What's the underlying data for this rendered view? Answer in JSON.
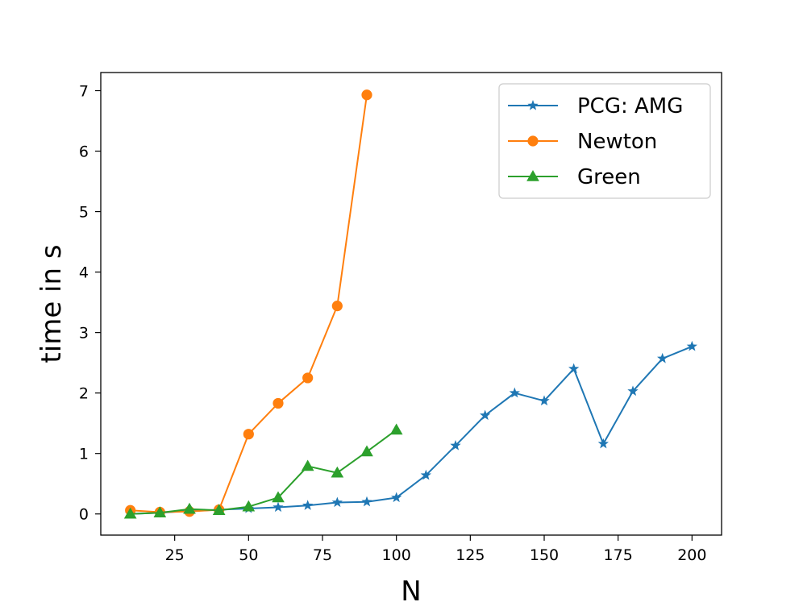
{
  "chart_data": {
    "type": "line",
    "title": "",
    "xlabel": "N",
    "ylabel": "time in s",
    "xlim": [
      0,
      210
    ],
    "ylim": [
      -0.35,
      7.3
    ],
    "xticks": [
      25,
      50,
      75,
      100,
      125,
      150,
      175,
      200
    ],
    "yticks": [
      0,
      1,
      2,
      3,
      4,
      5,
      6,
      7
    ],
    "xtick_labels": [
      "25",
      "50",
      "75",
      "100",
      "125",
      "150",
      "175",
      "200"
    ],
    "ytick_labels": [
      "0",
      "1",
      "2",
      "3",
      "4",
      "5",
      "6",
      "7"
    ],
    "grid": false,
    "legend_position": "top-right",
    "series": [
      {
        "name": "PCG: AMG",
        "color": "#1f77b4",
        "marker": "star",
        "x": [
          10,
          20,
          30,
          40,
          50,
          60,
          70,
          80,
          90,
          100,
          110,
          120,
          130,
          140,
          150,
          160,
          170,
          180,
          190,
          200
        ],
        "values": [
          0.0,
          0.02,
          0.05,
          0.07,
          0.09,
          0.11,
          0.14,
          0.19,
          0.2,
          0.27,
          0.64,
          1.13,
          1.63,
          2.0,
          1.87,
          2.4,
          1.16,
          2.03,
          2.57,
          2.77
        ]
      },
      {
        "name": "Newton",
        "color": "#ff7f0e",
        "marker": "circle",
        "x": [
          10,
          20,
          30,
          40,
          50,
          60,
          70,
          80,
          90
        ],
        "values": [
          0.06,
          0.03,
          0.04,
          0.07,
          1.32,
          1.83,
          2.25,
          3.44,
          6.93
        ]
      },
      {
        "name": "Green",
        "color": "#2ca02c",
        "marker": "triangle",
        "x": [
          10,
          20,
          30,
          40,
          50,
          60,
          70,
          80,
          90,
          100
        ],
        "values": [
          0.0,
          0.02,
          0.08,
          0.06,
          0.12,
          0.27,
          0.79,
          0.68,
          1.03,
          1.39
        ]
      }
    ]
  }
}
